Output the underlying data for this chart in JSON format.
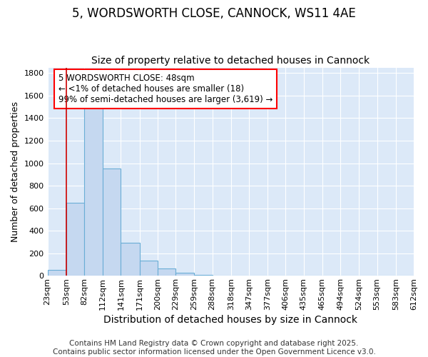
{
  "title1": "5, WORDSWORTH CLOSE, CANNOCK, WS11 4AE",
  "title2": "Size of property relative to detached houses in Cannock",
  "xlabel": "Distribution of detached houses by size in Cannock",
  "ylabel": "Number of detached properties",
  "bin_edges": [
    23,
    53,
    82,
    112,
    141,
    171,
    200,
    229,
    259,
    288,
    318,
    347,
    377,
    406,
    435,
    465,
    494,
    524,
    553,
    583,
    612
  ],
  "bar_heights": [
    50,
    650,
    1500,
    950,
    295,
    135,
    65,
    25,
    5,
    3,
    2,
    1,
    1,
    1,
    1,
    0,
    0,
    0,
    0,
    0
  ],
  "bar_color": "#c5d8f0",
  "bar_edge_color": "#6aaed6",
  "vline_x": 53,
  "vline_color": "#cc0000",
  "ylim": [
    0,
    1850
  ],
  "yticks": [
    0,
    200,
    400,
    600,
    800,
    1000,
    1200,
    1400,
    1600,
    1800
  ],
  "annotation_text": "5 WORDSWORTH CLOSE: 48sqm\n← <1% of detached houses are smaller (18)\n99% of semi-detached houses are larger (3,619) →",
  "background_color": "#dce9f8",
  "fig_background_color": "#ffffff",
  "grid_color": "#ffffff",
  "footer1": "Contains HM Land Registry data © Crown copyright and database right 2025.",
  "footer2": "Contains public sector information licensed under the Open Government Licence v3.0.",
  "title1_fontsize": 12,
  "title2_fontsize": 10,
  "xlabel_fontsize": 10,
  "ylabel_fontsize": 9,
  "tick_fontsize": 8,
  "annotation_fontsize": 8.5,
  "footer_fontsize": 7.5
}
